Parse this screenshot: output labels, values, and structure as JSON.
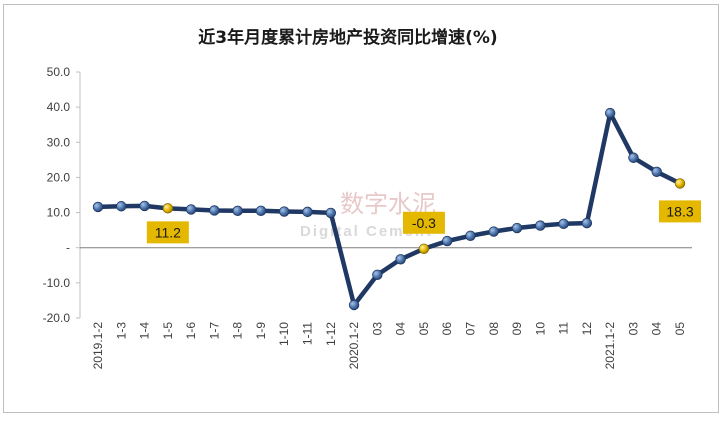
{
  "chart_data": {
    "type": "line",
    "title": "近3年月度累计房地产投资同比增速(%)",
    "xlabel": "",
    "ylabel": "",
    "ylim": [
      -20,
      50
    ],
    "y_ticks": [
      "-20.0",
      "-10.0",
      "-",
      "10.0",
      "20.0",
      "30.0",
      "40.0",
      "50.0"
    ],
    "y_tick_values": [
      -20,
      -10,
      0,
      10,
      20,
      30,
      40,
      50
    ],
    "categories": [
      "2019.1-2",
      "1-3",
      "1-4",
      "1-5",
      "1-6",
      "1-7",
      "1-8",
      "1-9",
      "1-10",
      "1-11",
      "1-12",
      "2020.1-2",
      "03",
      "04",
      "05",
      "06",
      "07",
      "08",
      "09",
      "10",
      "11",
      "12",
      "2021.1-2",
      "03",
      "04",
      "05"
    ],
    "series": [
      {
        "values": [
          11.6,
          11.8,
          11.9,
          11.2,
          10.9,
          10.6,
          10.5,
          10.5,
          10.3,
          10.2,
          9.9,
          -16.3,
          -7.7,
          -3.3,
          -0.3,
          1.9,
          3.4,
          4.6,
          5.6,
          6.3,
          6.8,
          7.0,
          38.3,
          25.6,
          21.6,
          18.3
        ],
        "color": "#1f3864"
      }
    ],
    "highlighted_points": [
      {
        "index": 3,
        "label": "11.2"
      },
      {
        "index": 14,
        "label": "-0.3"
      },
      {
        "index": 25,
        "label": "18.3"
      }
    ],
    "highlight_color": "#e5b800",
    "grid": false,
    "legend": "none"
  },
  "watermark": {
    "text": "数字水泥",
    "subtext": "Digital Cement"
  }
}
